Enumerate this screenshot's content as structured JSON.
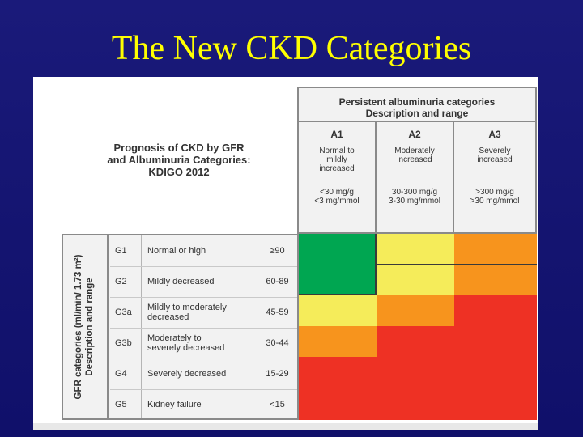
{
  "slide": {
    "title": "The New CKD Categories"
  },
  "figure": {
    "albuminuria_header": {
      "line1": "Persistent albuminuria categories",
      "line2": "Description and range"
    },
    "prognosis_title": {
      "line1": "Prognosis of CKD by GFR",
      "line2": "and Albuminuria Categories:",
      "line3": "KDIGO 2012"
    },
    "albuminuria_columns": [
      {
        "code": "A1",
        "desc1": "Normal to",
        "desc2": "mildly",
        "desc3": "increased",
        "range1": "<30 mg/g",
        "range2": "<3 mg/mmol"
      },
      {
        "code": "A2",
        "desc1": "Moderately",
        "desc2": "increased",
        "desc3": "",
        "range1": "30-300 mg/g",
        "range2": "3-30 mg/mmol"
      },
      {
        "code": "A3",
        "desc1": "Severely",
        "desc2": "increased",
        "desc3": "",
        "range1": ">300 mg/g",
        "range2": ">30 mg/mmol"
      }
    ],
    "gfr_axis_label": {
      "line1": "GFR categories (ml/min/ 1.73 m²)",
      "line2": "Description and range"
    },
    "gfr_rows": [
      {
        "code": "G1",
        "desc1": "Normal or high",
        "desc2": "",
        "range": "≥90",
        "risk": [
          "green",
          "yellow",
          "orange"
        ]
      },
      {
        "code": "G2",
        "desc1": "Mildly decreased",
        "desc2": "",
        "range": "60-89",
        "risk": [
          "green",
          "yellow",
          "orange"
        ]
      },
      {
        "code": "G3a",
        "desc1": "Mildly to moderately",
        "desc2": "decreased",
        "range": "45-59",
        "risk": [
          "yellow",
          "orange",
          "red"
        ]
      },
      {
        "code": "G3b",
        "desc1": "Moderately to",
        "desc2": "severely decreased",
        "range": "30-44",
        "risk": [
          "orange",
          "red",
          "red"
        ]
      },
      {
        "code": "G4",
        "desc1": "Severely decreased",
        "desc2": "",
        "range": "15-29",
        "risk": [
          "red",
          "red",
          "red"
        ]
      },
      {
        "code": "G5",
        "desc1": "Kidney failure",
        "desc2": "",
        "range": "<15",
        "risk": [
          "red",
          "red",
          "red"
        ]
      }
    ],
    "colors": {
      "green": "#00a651",
      "yellow": "#f5ec5a",
      "orange": "#f7941d",
      "red": "#ee3124"
    }
  }
}
